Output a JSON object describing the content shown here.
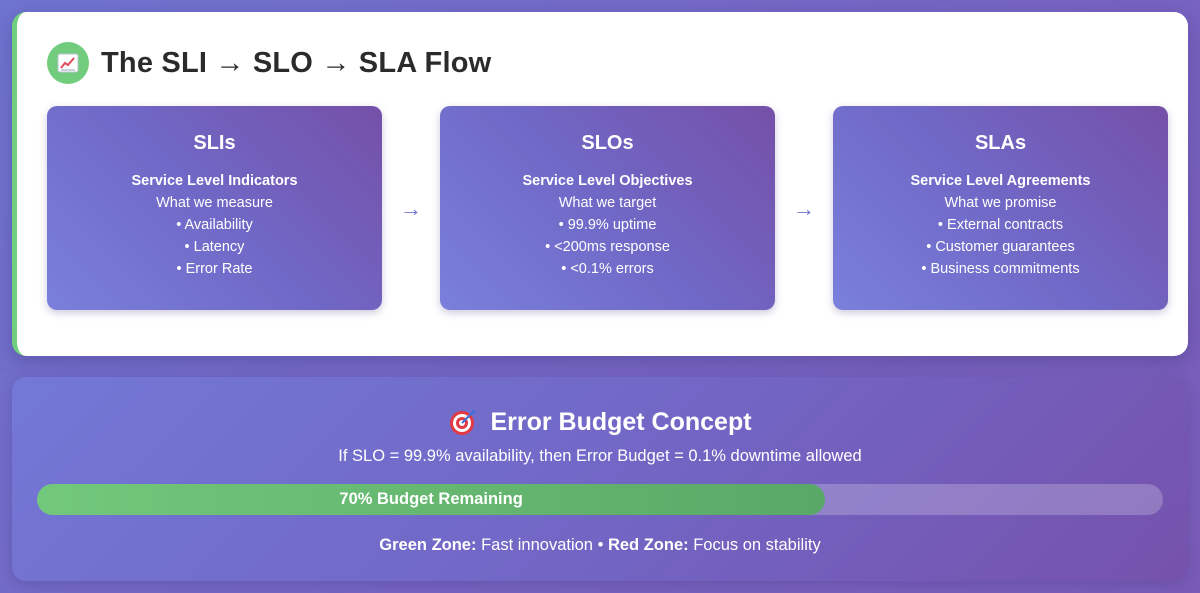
{
  "flow": {
    "icon": "chart-increasing-icon",
    "title": "The SLI → SLO → SLA Flow",
    "arrow": "→",
    "boxes": [
      {
        "title": "SLIs",
        "subtitle": "Service Level Indicators",
        "tagline": "What we measure",
        "items": [
          "• Availability",
          "• Latency",
          "• Error Rate"
        ]
      },
      {
        "title": "SLOs",
        "subtitle": "Service Level Objectives",
        "tagline": "What we target",
        "items": [
          "• 99.9% uptime",
          "• <200ms response",
          "• <0.1% errors"
        ]
      },
      {
        "title": "SLAs",
        "subtitle": "Service Level Agreements",
        "tagline": "What we promise",
        "items": [
          "• External contracts",
          "• Customer guarantees",
          "• Business commitments"
        ]
      }
    ]
  },
  "error_budget": {
    "icon": "target-icon",
    "title": "Error Budget Concept",
    "description": "If SLO = 99.9% availability, then Error Budget = 0.1% downtime allowed",
    "progress": {
      "percent": 70,
      "label": "70% Budget Remaining"
    },
    "zones": {
      "green_label": "Green Zone:",
      "green_text": "Fast innovation",
      "separator": "•",
      "red_label": "Red Zone:",
      "red_text": "Focus on stability"
    }
  },
  "colors": {
    "accent_green": "#6fcf7f",
    "box_purple": "#7068c6",
    "arrow": "#6d73cf"
  }
}
